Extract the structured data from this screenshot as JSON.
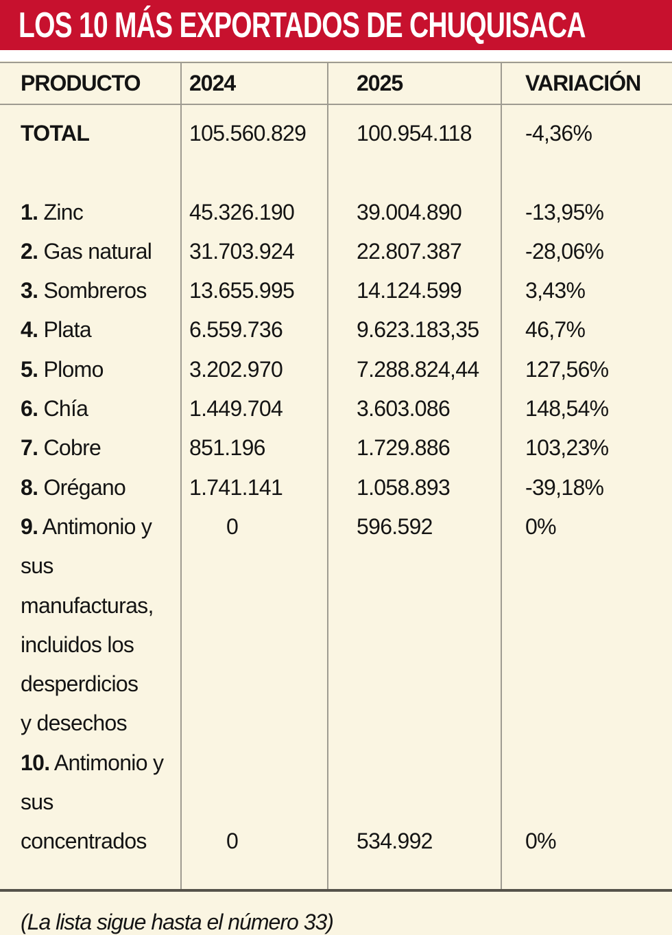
{
  "header": {
    "title": "LOS 10 MÁS EXPORTADOS DE CHUQUISACA"
  },
  "colors": {
    "accent_red": "#C7112E",
    "background_cream": "#FAF5E2",
    "grid_line": "#9E9B91",
    "bottom_rule": "#55524A",
    "text": "#141414",
    "title_text": "#FFFFFF"
  },
  "table": {
    "columns": [
      "PRODUCTO",
      "2024",
      "2025",
      "VARIACIÓN"
    ],
    "rows": [
      {
        "num": "",
        "name": "TOTAL",
        "y2024": "105.560.829",
        "y2025": "100.954.118",
        "variation": "-4,36%"
      },
      {
        "num": "1.",
        "name": " Zinc",
        "y2024": "45.326.190",
        "y2025": "39.004.890",
        "variation": "-13,95%"
      },
      {
        "num": "2.",
        "name": " Gas natural",
        "y2024": "31.703.924",
        "y2025": "22.807.387",
        "variation": "-28,06%"
      },
      {
        "num": "3.",
        "name": " Sombreros",
        "y2024": "13.655.995",
        "y2025": "14.124.599",
        "variation": "3,43%"
      },
      {
        "num": "4.",
        "name": " Plata",
        "y2024": "6.559.736",
        "y2025": "9.623.183,35",
        "variation": "46,7%"
      },
      {
        "num": "5.",
        "name": " Plomo",
        "y2024": "3.202.970",
        "y2025": "7.288.824,44",
        "variation": "127,56%"
      },
      {
        "num": "6.",
        "name": " Chía",
        "y2024": "1.449.704",
        "y2025": "3.603.086",
        "variation": "148,54%"
      },
      {
        "num": "7.",
        "name": " Cobre",
        "y2024": "851.196",
        "y2025": "1.729.886",
        "variation": "103,23%"
      },
      {
        "num": "8.",
        "name": " Orégano",
        "y2024": "1.741.141",
        "y2025": "1.058.893",
        "variation": "-39,18%"
      },
      {
        "num": "9.",
        "name": " Antimonio y\nsus manufacturas,\nincluidos los\ndesperdicios\ny desechos",
        "y2024": "0",
        "y2025": "596.592",
        "variation": "0%"
      },
      {
        "num": "10.",
        "name": " Antimonio y\nsus concentrados",
        "y2024": "0",
        "y2025": "534.992",
        "variation": "0%"
      }
    ]
  },
  "footer": {
    "note": "(La lista sigue hasta el número 33)"
  },
  "chart_data": {
    "type": "table",
    "title": "LOS 10 MÁS EXPORTADOS DE CHUQUISACA",
    "columns": [
      "PRODUCTO",
      "2024",
      "2025",
      "VARIACIÓN"
    ],
    "rows": [
      [
        "TOTAL",
        "105.560.829",
        "100.954.118",
        "-4,36%"
      ],
      [
        "1. Zinc",
        "45.326.190",
        "39.004.890",
        "-13,95%"
      ],
      [
        "2. Gas natural",
        "31.703.924",
        "22.807.387",
        "-28,06%"
      ],
      [
        "3. Sombreros",
        "13.655.995",
        "14.124.599",
        "3,43%"
      ],
      [
        "4. Plata",
        "6.559.736",
        "9.623.183,35",
        "46,7%"
      ],
      [
        "5. Plomo",
        "3.202.970",
        "7.288.824,44",
        "127,56%"
      ],
      [
        "6. Chía",
        "1.449.704",
        "3.603.086",
        "148,54%"
      ],
      [
        "7. Cobre",
        "851.196",
        "1.729.886",
        "103,23%"
      ],
      [
        "8. Orégano",
        "1.741.141",
        "1.058.893",
        "-39,18%"
      ],
      [
        "9. Antimonio y sus manufacturas, incluidos los desperdicios y desechos",
        "0",
        "596.592",
        "0%"
      ],
      [
        "10. Antimonio y sus concentrados",
        "0",
        "534.992",
        "0%"
      ]
    ],
    "footnote": "(La lista sigue hasta el número 33)"
  }
}
